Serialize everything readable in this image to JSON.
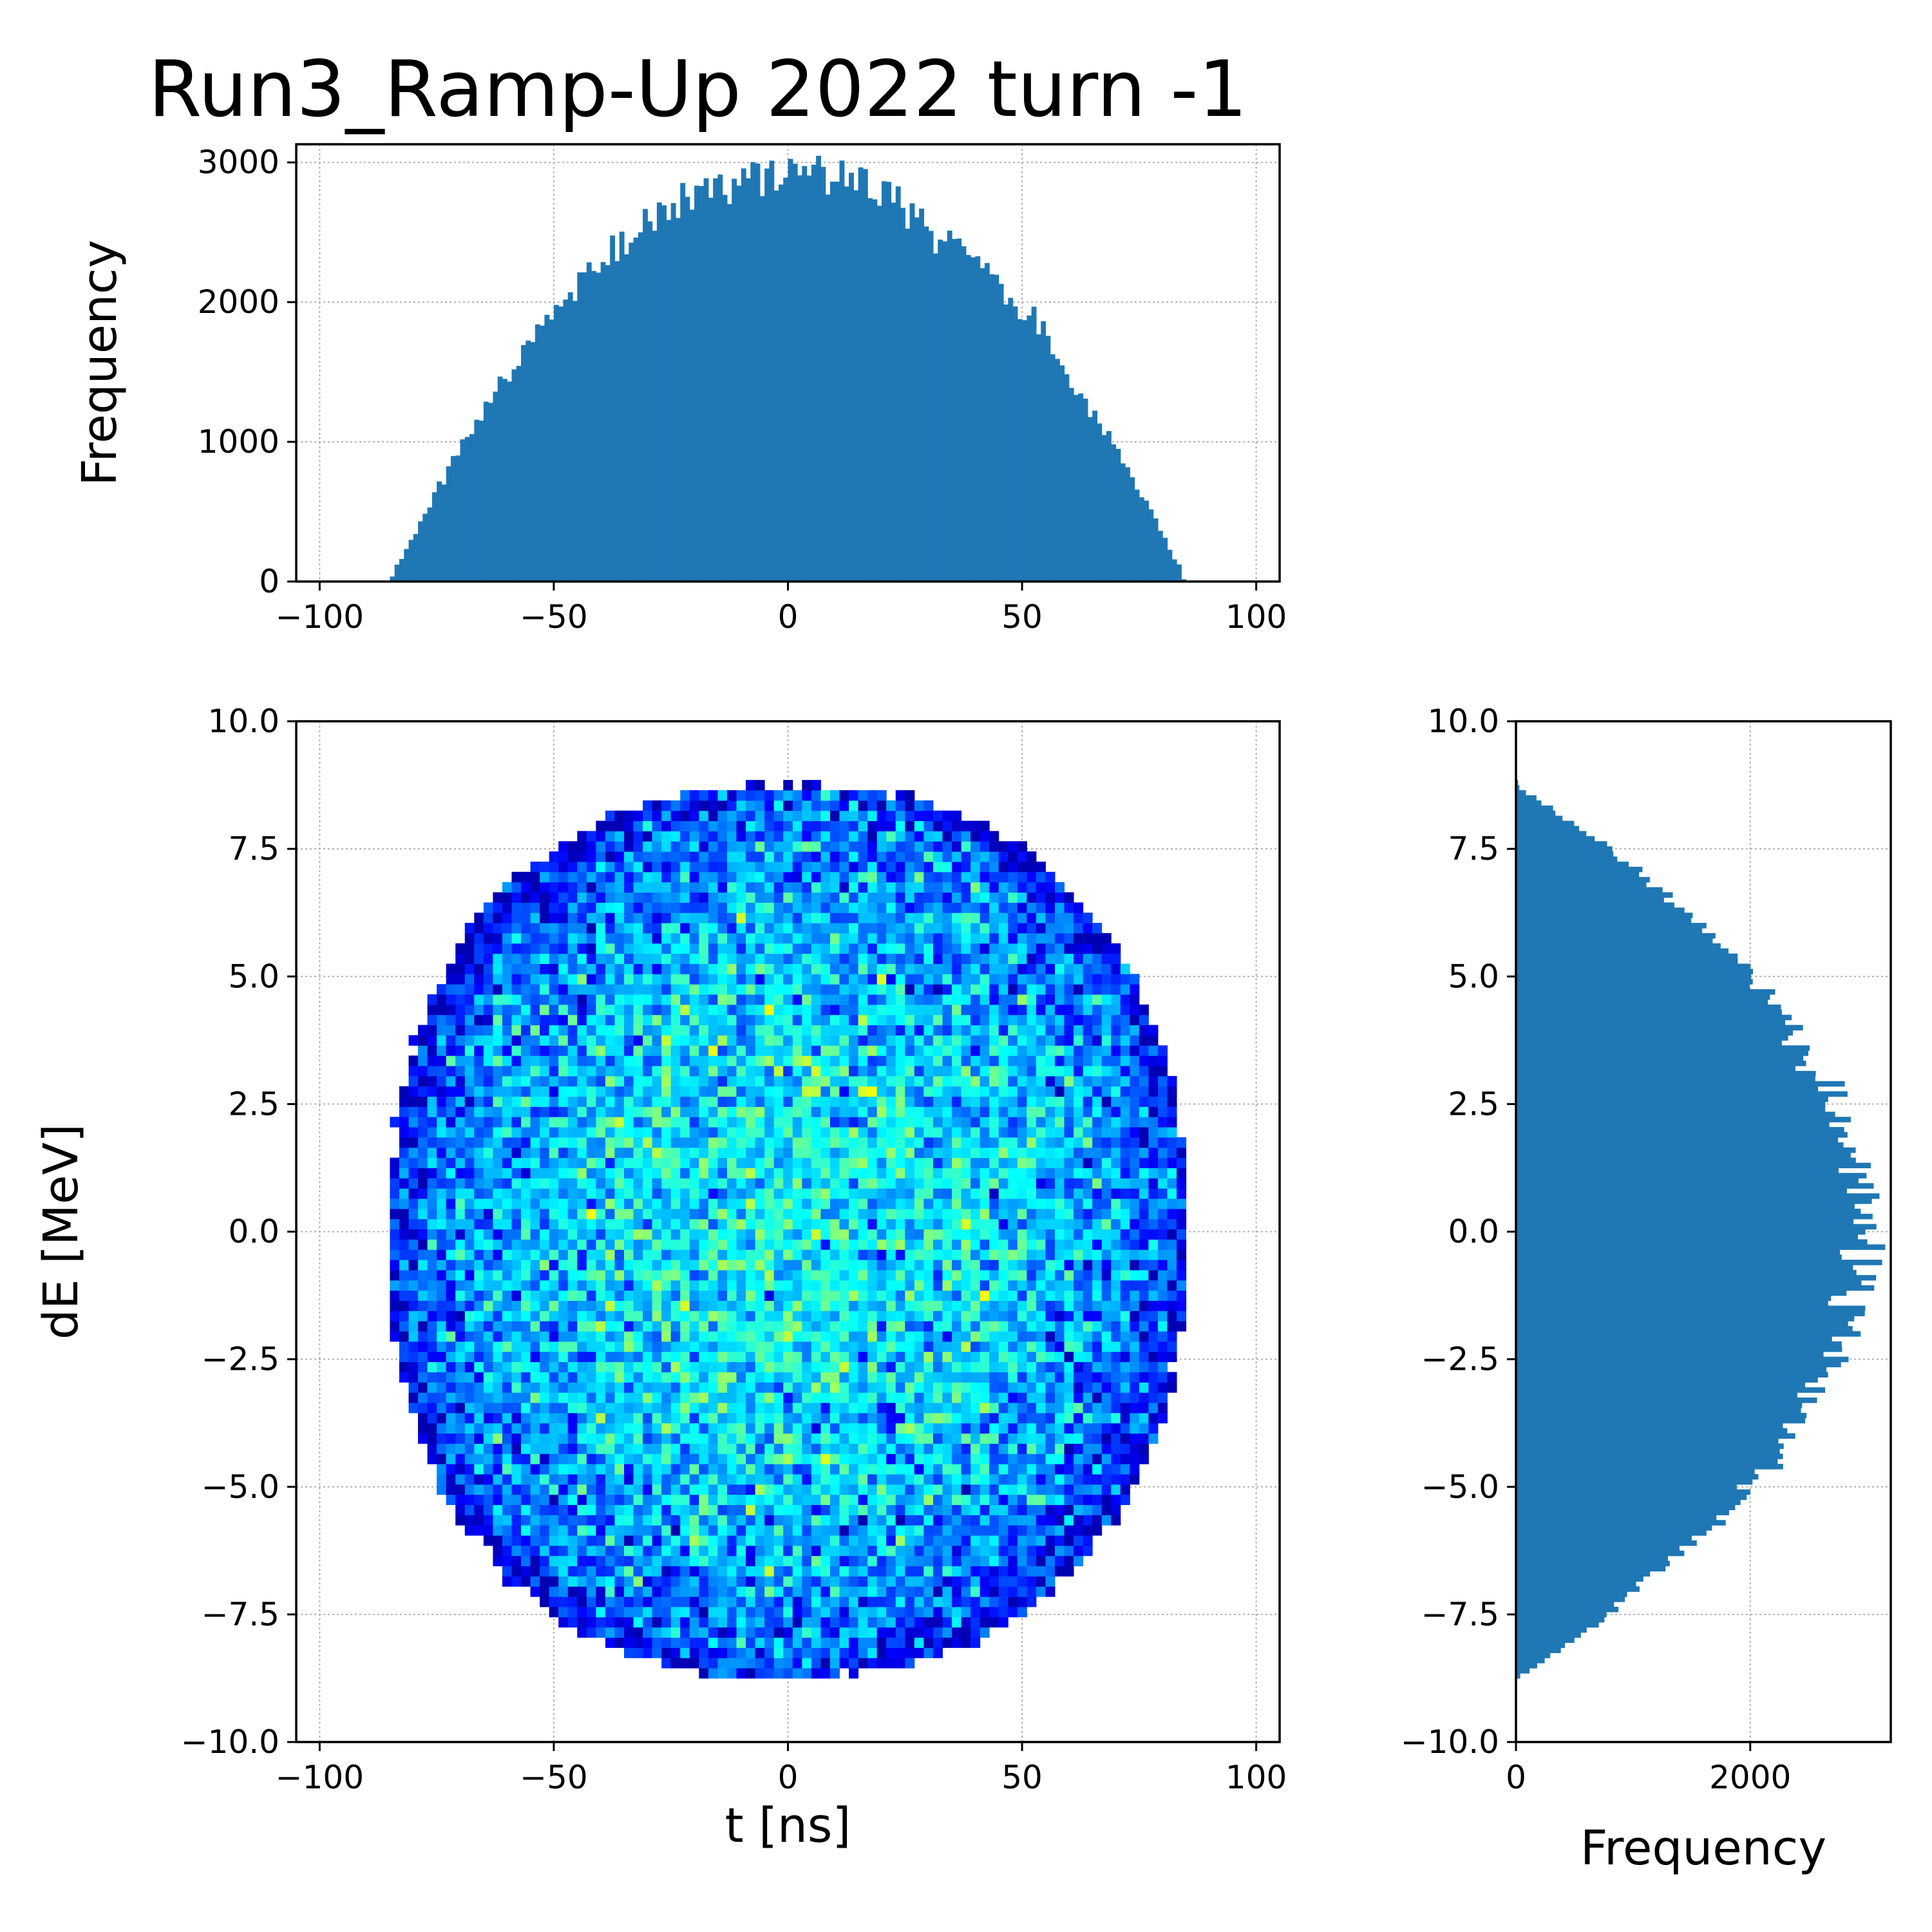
{
  "title": "Run3_Ramp-Up 2022 turn -1",
  "colors": {
    "histogram": "#1f77b4",
    "background": "#ffffff",
    "grid": "#b0b0b0",
    "colormap": "jet"
  },
  "chart_data": [
    {
      "id": "top",
      "type": "bar",
      "orientation": "vertical",
      "xlabel": "",
      "ylabel": "Frequency",
      "xlim": [
        -105,
        105
      ],
      "ylim": [
        0,
        3130
      ],
      "xticks": [
        -100,
        -50,
        0,
        50,
        100
      ],
      "xtick_labels": [
        "−100",
        "−50",
        "0",
        "50",
        "100"
      ],
      "yticks": [
        0,
        1000,
        2000,
        3000
      ],
      "ytick_labels": [
        "0",
        "1000",
        "2000",
        "3000"
      ],
      "grid": true,
      "bin_edges_range": [
        -85,
        85
      ],
      "bin_width": 1,
      "peak_value": 2950,
      "shape": "parabolic",
      "profile_samples": {
        "x": [
          -85,
          -80,
          -70,
          -60,
          -50,
          -40,
          -30,
          -20,
          -10,
          0,
          10,
          20,
          30,
          40,
          50,
          60,
          70,
          80,
          85
        ],
        "y": [
          250,
          640,
          1160,
          1750,
          2050,
          2380,
          2560,
          2770,
          2870,
          2950,
          2870,
          2750,
          2570,
          2280,
          1960,
          1560,
          1050,
          530,
          0
        ]
      }
    },
    {
      "id": "main",
      "type": "heatmap",
      "xlabel": "t [ns]",
      "ylabel": "dE [MeV]",
      "xlim": [
        -105,
        105
      ],
      "ylim": [
        -10,
        10
      ],
      "xticks": [
        -100,
        -50,
        0,
        50,
        100
      ],
      "xtick_labels": [
        "−100",
        "−50",
        "0",
        "50",
        "100"
      ],
      "yticks": [
        -10,
        -7.5,
        -5,
        -2.5,
        0,
        2.5,
        5,
        7.5,
        10
      ],
      "ytick_labels": [
        "−10.0",
        "−7.5",
        "−5.0",
        "−2.5",
        "0.0",
        "2.5",
        "5.0",
        "7.5",
        "10.0"
      ],
      "grid": true,
      "colormap": "jet",
      "bin_width_t": 1,
      "bin_width_dE": 0.1,
      "distribution_boundary": {
        "t_extent": [
          -85,
          85
        ],
        "dE_extent": [
          -8.75,
          8.75
        ]
      }
    },
    {
      "id": "right",
      "type": "bar",
      "orientation": "horizontal",
      "xlabel": "Frequency",
      "ylabel": "",
      "xlim": [
        0,
        3200
      ],
      "ylim": [
        -10,
        10
      ],
      "xticks": [
        0,
        2000
      ],
      "xtick_labels": [
        "0",
        "2000"
      ],
      "yticks": [
        -10,
        -7.5,
        -5,
        -2.5,
        0,
        2.5,
        5,
        7.5,
        10
      ],
      "ytick_labels": [
        "−10.0",
        "−7.5",
        "−5.0",
        "−2.5",
        "0.0",
        "2.5",
        "5.0",
        "7.5",
        "10.0"
      ],
      "grid": true,
      "bin_edges_range": [
        -8.75,
        8.75
      ],
      "bin_width": 0.1,
      "peak_value": 2950,
      "shape": "parabolic",
      "profile_samples": {
        "y": [
          8.75,
          8.0,
          7.5,
          6.5,
          5.0,
          4.0,
          3.0,
          2.0,
          1.0,
          0.0,
          -1.0,
          -2.0,
          -2.5,
          -3.0,
          -4.0,
          -5.0,
          -6.0,
          -7.5,
          -8.0,
          -8.75
        ],
        "x": [
          0,
          800,
          1000,
          1450,
          2180,
          2420,
          2600,
          2800,
          2880,
          2980,
          2900,
          2750,
          2700,
          2550,
          2350,
          2000,
          1550,
          800,
          500,
          0
        ]
      }
    }
  ]
}
